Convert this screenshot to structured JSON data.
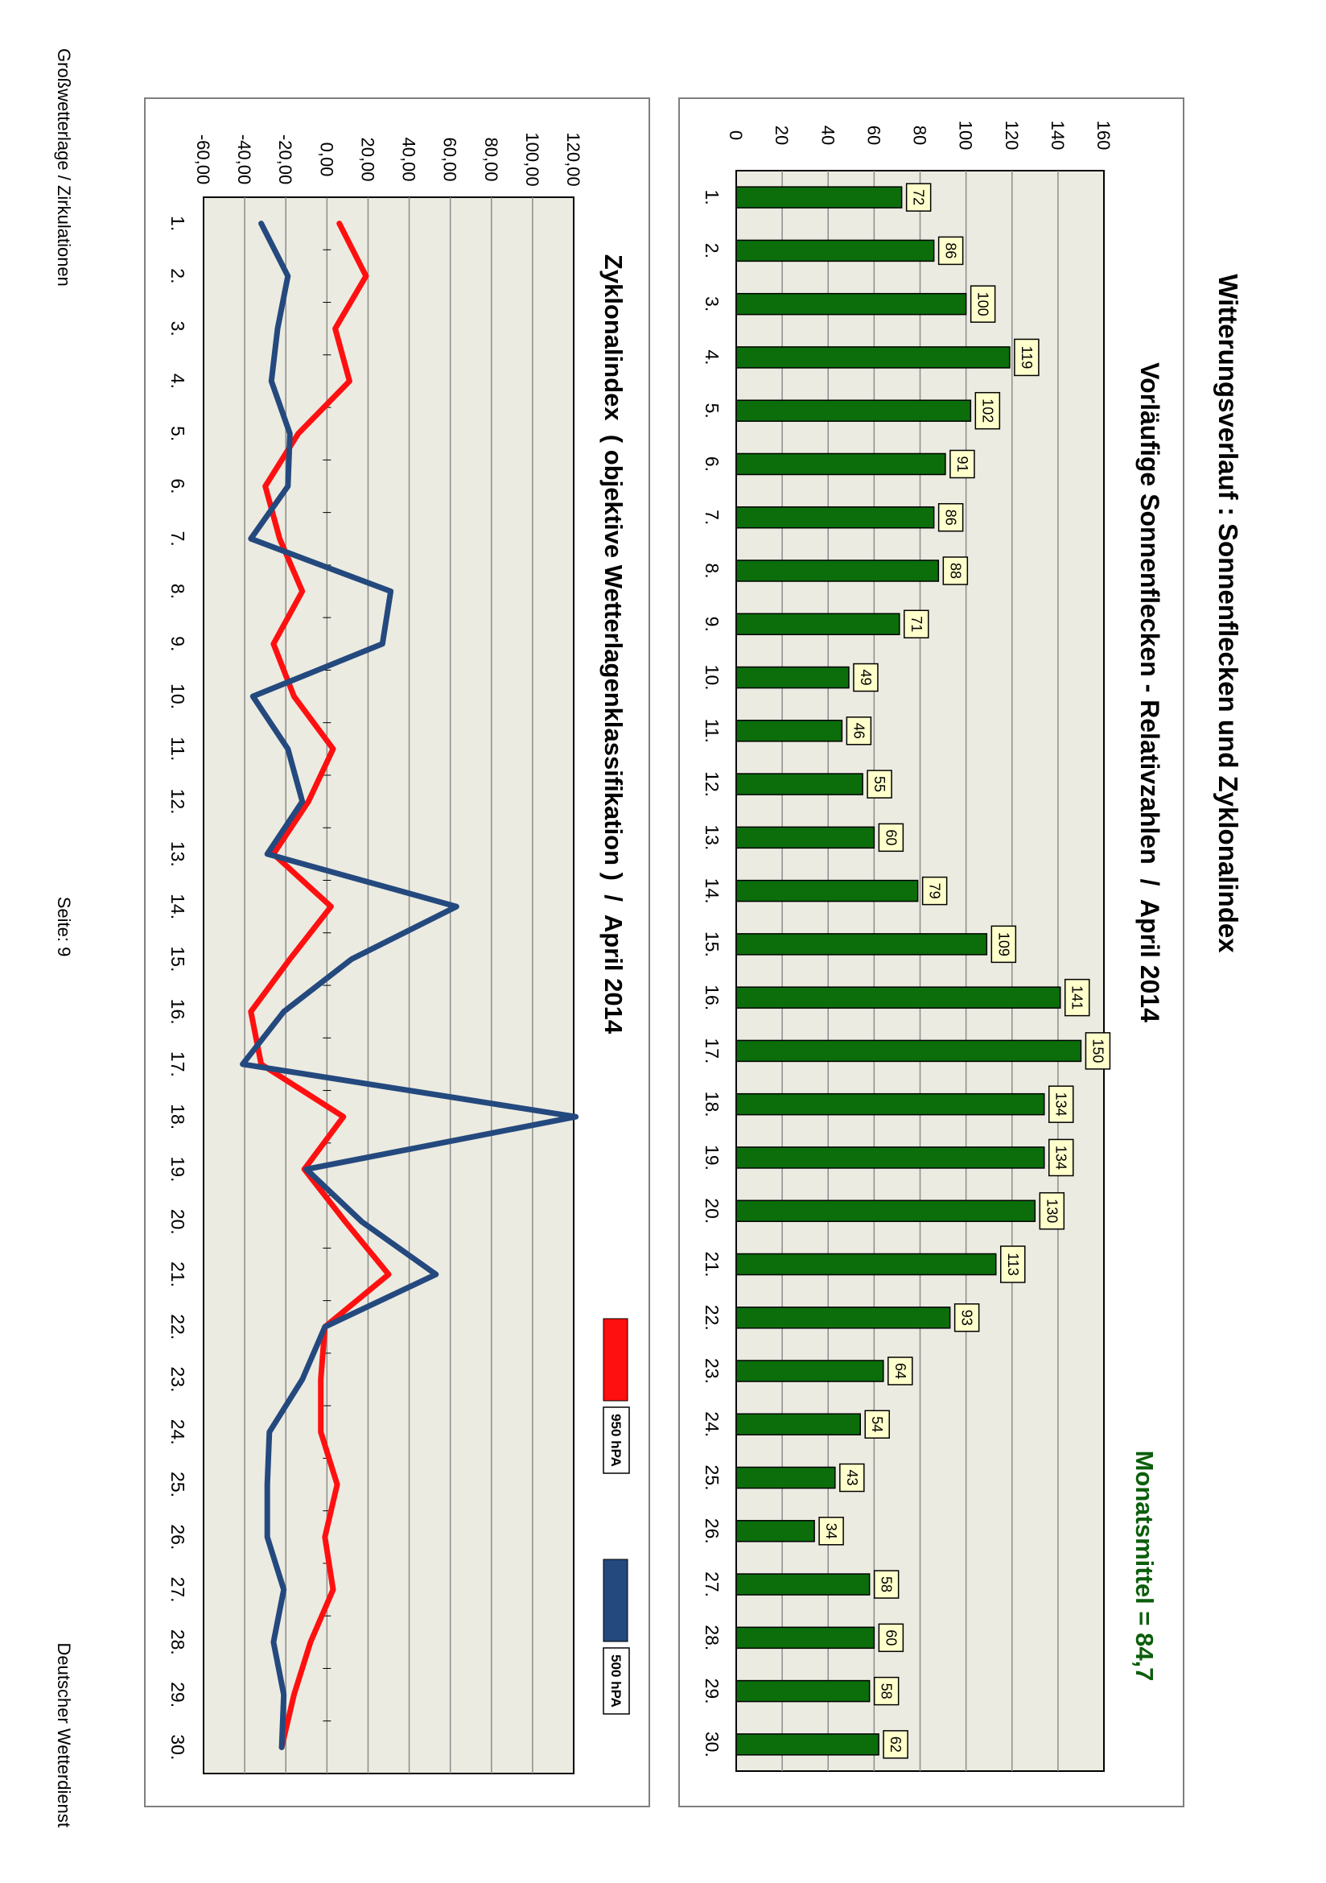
{
  "main_title": "Witterungsverlauf : Sonnenflecken und Zyklonalindex",
  "footer": {
    "left": "Großwetterlage / Zirkulationen",
    "center": "Seite: 9",
    "right": "Deutscher Wetterdienst"
  },
  "colors": {
    "bar": "#0b6e0b",
    "plot_bg": "#ecebe1",
    "line_950": "#ff1010",
    "line_500": "#24497e",
    "label_bg": "#ffffcc",
    "monthly_mean_text": "#0b5e0b"
  },
  "chart_data": [
    {
      "type": "bar",
      "title": "Vorläufige Sonnenflecken - Relativzahlen  /  April 2014",
      "annotation": "Monatsmittel = 84,7",
      "categories": [
        "1.",
        "2.",
        "3.",
        "4.",
        "5.",
        "6.",
        "7.",
        "8.",
        "9.",
        "10.",
        "11.",
        "12.",
        "13.",
        "14.",
        "15.",
        "16.",
        "17.",
        "18.",
        "19.",
        "20.",
        "21.",
        "22.",
        "23.",
        "24.",
        "25.",
        "26.",
        "27.",
        "28.",
        "29.",
        "30."
      ],
      "values": [
        72,
        86,
        100,
        119,
        102,
        91,
        86,
        88,
        71,
        49,
        46,
        55,
        60,
        79,
        109,
        141,
        150,
        134,
        134,
        130,
        113,
        93,
        64,
        54,
        43,
        34,
        58,
        60,
        58,
        62
      ],
      "data_labels": [
        "72",
        "86",
        "100",
        "119",
        "102",
        "91",
        "86",
        "88",
        "71",
        "49",
        "46",
        "55",
        "60",
        "79",
        "109",
        "141",
        "150",
        "134",
        "134",
        "130",
        "113",
        "93",
        "64",
        "54",
        "43",
        "34",
        "58",
        "60",
        "58",
        "62"
      ],
      "ylim": [
        0,
        160
      ],
      "yticks": [
        "0",
        "20",
        "40",
        "60",
        "80",
        "100",
        "120",
        "140",
        "160"
      ],
      "grid": true
    },
    {
      "type": "line",
      "title": "Zyklonalindex  ( objektive Wetterlagenklassifikation )  /  April 2014",
      "categories": [
        "1.",
        "2.",
        "3.",
        "4.",
        "5.",
        "6.",
        "7.",
        "8.",
        "9.",
        "10.",
        "11.",
        "12.",
        "13.",
        "14.",
        "15.",
        "16.",
        "17.",
        "18.",
        "19.",
        "20.",
        "21.",
        "22.",
        "23.",
        "24.",
        "25.",
        "26.",
        "27.",
        "28.",
        "29.",
        "30."
      ],
      "series": [
        {
          "name": "950 hPA",
          "values": [
            6,
            19,
            4,
            11,
            -14,
            -30,
            -23,
            -12,
            -26,
            -16,
            3,
            -9,
            -26,
            2,
            -18,
            -37,
            -32,
            8,
            -11,
            9,
            30,
            -1,
            -3,
            -3,
            5,
            -1,
            3,
            -8,
            -16,
            -22
          ]
        },
        {
          "name": "500 hPA",
          "values": [
            -32,
            -19,
            -24,
            -27,
            -18,
            -19,
            -37,
            31,
            27,
            -36,
            -19,
            -12,
            -29,
            63,
            12,
            -21,
            -41,
            121,
            -10,
            17,
            53,
            -1,
            -12,
            -28,
            -29,
            -29,
            -21,
            -26,
            -21,
            -22
          ]
        }
      ],
      "ylim": [
        -60,
        120
      ],
      "yticks": [
        "-60,00",
        "-40,00",
        "-20,00",
        "0,00",
        "20,00",
        "40,00",
        "60,00",
        "80,00",
        "100,00",
        "120,00"
      ],
      "grid": true,
      "legend_placement": "right"
    }
  ]
}
